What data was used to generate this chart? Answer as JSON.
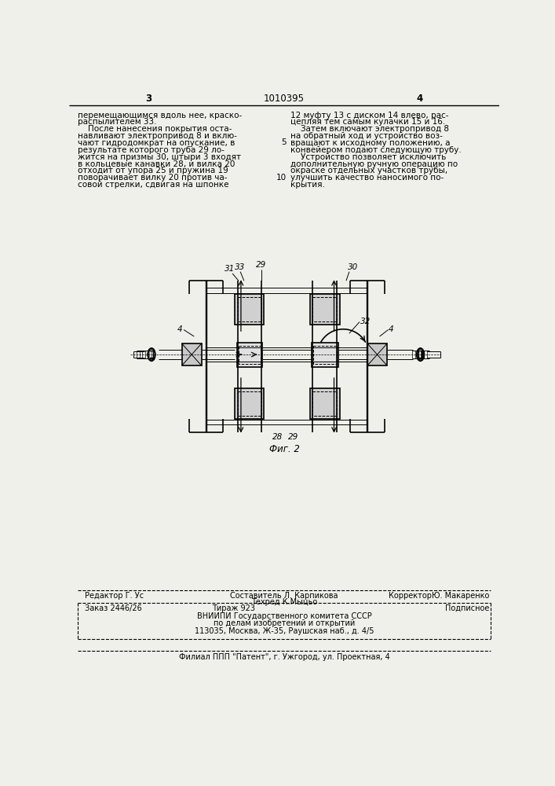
{
  "bg_color": "#f0f0eb",
  "page_num_left": "3",
  "page_num_center": "1010395",
  "page_num_right": "4",
  "text_left": "перемещающимся вдоль нее, краско-\nраспылителем 33.\n    После нанесения покрытия оста-\nнавливают электропривод 8 и вклю-\nчают гидродомкрат на опускание, в\nрезультате которого труба 29 ло-\nжится на призмы 30, штыри 3 входят\nв кольцевые канавки 28, и вилка 20\nотходит от упора 25 и пружина 19\nповорачивает вилку 20 против ча-\nсовой стрелки, сдвигая на шпонке",
  "text_right": "12 муфту 13 с диском 14 влево, рас-\nцепляя тем самым кулачки 15 и 16.\n    Затем включают электропривод 8\nна обратный ход и устройство воз-\nвращают к исходному положению, а\nконвейером подают следующую трубу.\n    Устройство позволяет исключить\nдополнительную ручную операцию по\nокраске отдельных участков трубы,\nулучшить качество наносимого по-\nкрытия.",
  "fig_caption": "Фиг. 2",
  "editor_line": "Редактор Г. Ус",
  "composer_line1": "Составитель Л. Карпикова",
  "composer_line2": "Техред К.Мыцьо",
  "corrector_line": "КорректорЮ. Макаренко",
  "footer_line1": "Заказ 2446/26          Тираж 923          Подписное",
  "footer_line2": "ВНИИПИ Государственного комитета СССР",
  "footer_line3": "по делам изобретений и открытий",
  "footer_line4": "113035, Москва, Ж-35, Раушская наб., д. 4/5",
  "footer_line5": "Филиал ППП \"Патент\", г. Ужгород, ул. Проектная, 4"
}
